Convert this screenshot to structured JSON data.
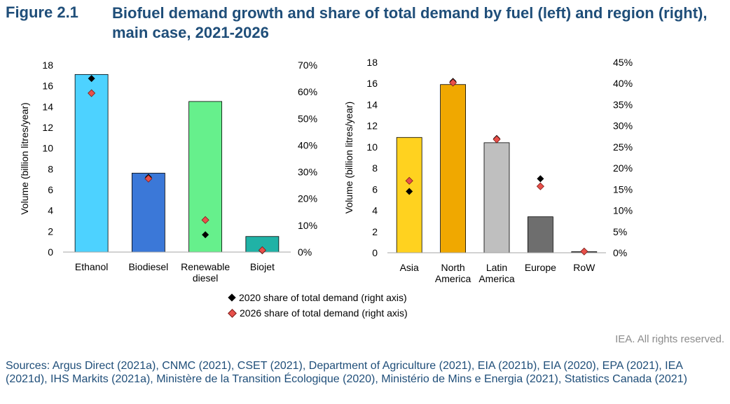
{
  "figure": {
    "number": "Figure 2.1",
    "title": "Biofuel demand growth and share of total demand by fuel (left) and region (right), main case, 2021-2026"
  },
  "legend": {
    "item_2020": "2020 share of total demand (right axis)",
    "item_2026": "2026 share of total demand (right axis)"
  },
  "colors": {
    "marker_2020": "#000000",
    "marker_2026": "#e8504a"
  },
  "copyright": "IEA. All rights reserved.",
  "sources": "Sources: Argus Direct (2021a), CNMC (2021), CSET (2021), Department of Agriculture (2021), EIA (2021b), EIA (2020), EPA (2021), IEA (2021d), IHS Markits (2021a), Ministère de la Transition Écologique (2020), Ministério de Mins e Energia (2021), Statistics Canada (2021)",
  "chart_data": [
    {
      "type": "bar",
      "categories": [
        "Ethanol",
        "Biodiesel",
        "Renewable diesel",
        "Biojet"
      ],
      "category_lines": [
        [
          "Ethanol"
        ],
        [
          "Biodiesel"
        ],
        [
          "Renewable",
          "diesel"
        ],
        [
          "Biojet"
        ]
      ],
      "values": [
        17.1,
        7.6,
        14.5,
        1.5
      ],
      "bar_colors": [
        "#4dd2ff",
        "#3b78d8",
        "#66f08c",
        "#20b2a6"
      ],
      "ylabel": "Volume (billion litres/year)",
      "ylim": [
        0,
        18
      ],
      "yticks": [
        0,
        2,
        4,
        6,
        8,
        10,
        12,
        14,
        16,
        18
      ],
      "y2lim": [
        0,
        0.7
      ],
      "y2ticks": [
        0,
        0.1,
        0.2,
        0.3,
        0.4,
        0.5,
        0.6,
        0.7
      ],
      "y2tick_labels": [
        "0%",
        "10%",
        "20%",
        "30%",
        "40%",
        "50%",
        "60%",
        "70%"
      ],
      "share_2020": [
        0.65,
        0.28,
        0.065,
        0.005
      ],
      "share_2026": [
        0.595,
        0.275,
        0.12,
        0.007
      ],
      "grid": false
    },
    {
      "type": "bar",
      "categories": [
        "Asia",
        "North America",
        "Latin America",
        "Europe",
        "RoW"
      ],
      "category_lines": [
        [
          "Asia"
        ],
        [
          "North",
          "America"
        ],
        [
          "Latin",
          "America"
        ],
        [
          "Europe"
        ],
        [
          "RoW"
        ]
      ],
      "values": [
        10.9,
        15.9,
        10.4,
        3.4,
        0.1
      ],
      "bar_colors": [
        "#ffd21f",
        "#f0a800",
        "#bfbfbf",
        "#6e6e6e",
        "#4a4a4a"
      ],
      "ylabel": "Volume (billion litres/year)",
      "ylim": [
        0,
        18
      ],
      "yticks": [
        0,
        2,
        4,
        6,
        8,
        10,
        12,
        14,
        16,
        18
      ],
      "y2lim": [
        0,
        0.45
      ],
      "y2ticks": [
        0,
        0.05,
        0.1,
        0.15,
        0.2,
        0.25,
        0.3,
        0.35,
        0.4,
        0.45
      ],
      "y2tick_labels": [
        "0%",
        "5%",
        "10%",
        "15%",
        "20%",
        "25%",
        "30%",
        "35%",
        "40%",
        "45%"
      ],
      "share_2020": [
        0.145,
        0.405,
        0.27,
        0.175,
        0.003
      ],
      "share_2026": [
        0.17,
        0.402,
        0.268,
        0.157,
        0.003
      ],
      "grid": false
    }
  ]
}
